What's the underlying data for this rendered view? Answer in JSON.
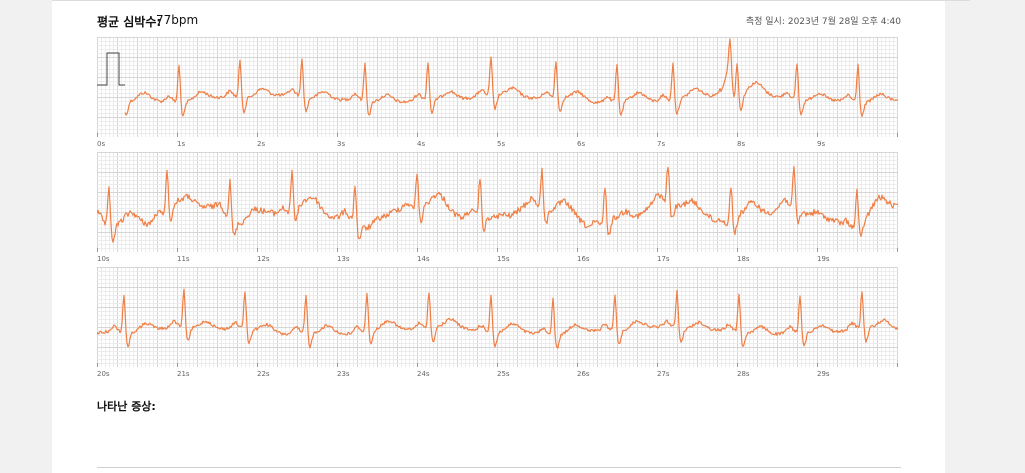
{
  "summary": {
    "avg_hr_label": "평균 심박수:",
    "avg_hr_value": "77bpm",
    "measured_label": "측정 일시:",
    "measured_value": "2023년 7월 28일 오후 4:40"
  },
  "colors": {
    "trace": "#f07f45",
    "grid_minor": "#ececec",
    "grid_major": "#d6d6d6"
  },
  "strips": [
    {
      "ticks": [
        "0s",
        "1s",
        "2s",
        "3s",
        "4s",
        "5s",
        "6s",
        "7s",
        "8s",
        "9s"
      ]
    },
    {
      "ticks": [
        "10s",
        "11s",
        "12s",
        "13s",
        "14s",
        "15s",
        "16s",
        "17s",
        "18s",
        "19s"
      ]
    },
    {
      "ticks": [
        "20s",
        "21s",
        "22s",
        "23s",
        "24s",
        "25s",
        "26s",
        "27s",
        "28s",
        "29s"
      ]
    }
  ],
  "symptoms": {
    "title": "나타난 증상:"
  }
}
